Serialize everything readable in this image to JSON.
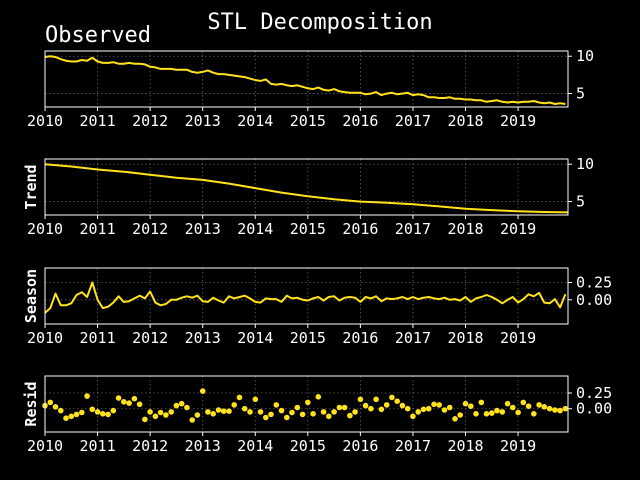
{
  "title": "STL Decomposition",
  "colors": {
    "background": "#000000",
    "line": "#ffe21c",
    "axis": "#ffffff",
    "grid": "#b0b0b0"
  },
  "chart_data": [
    {
      "type": "line",
      "label": "Observed",
      "label_position": "title",
      "xlim": [
        2010,
        2019.95
      ],
      "ylim": [
        3.2,
        10.7
      ],
      "xticks": [
        "2010",
        "2011",
        "2012",
        "2013",
        "2014",
        "2015",
        "2016",
        "2017",
        "2018",
        "2019"
      ],
      "yticks": [
        10,
        5
      ],
      "grid": true,
      "x": [
        2010.0,
        2010.1,
        2010.2,
        2010.3,
        2010.4,
        2010.5,
        2010.6,
        2010.7,
        2010.8,
        2010.9,
        2011.0,
        2011.1,
        2011.2,
        2011.3,
        2011.4,
        2011.5,
        2011.6,
        2011.7,
        2011.8,
        2011.9,
        2012.0,
        2012.1,
        2012.2,
        2012.3,
        2012.4,
        2012.5,
        2012.6,
        2012.7,
        2012.8,
        2012.9,
        2013.0,
        2013.1,
        2013.2,
        2013.3,
        2013.4,
        2013.5,
        2013.6,
        2013.7,
        2013.8,
        2013.9,
        2014.0,
        2014.1,
        2014.2,
        2014.3,
        2014.4,
        2014.5,
        2014.6,
        2014.7,
        2014.8,
        2014.9,
        2015.0,
        2015.1,
        2015.2,
        2015.3,
        2015.4,
        2015.5,
        2015.6,
        2015.7,
        2015.8,
        2015.9,
        2016.0,
        2016.1,
        2016.2,
        2016.3,
        2016.4,
        2016.5,
        2016.6,
        2016.7,
        2016.8,
        2016.9,
        2017.0,
        2017.1,
        2017.2,
        2017.3,
        2017.4,
        2017.5,
        2017.6,
        2017.7,
        2017.8,
        2017.9,
        2018.0,
        2018.1,
        2018.2,
        2018.3,
        2018.4,
        2018.5,
        2018.6,
        2018.7,
        2018.8,
        2018.9,
        2019.0,
        2019.1,
        2019.2,
        2019.3,
        2019.4,
        2019.5,
        2019.6,
        2019.7,
        2019.8,
        2019.9
      ],
      "y": [
        9.9,
        10.0,
        9.9,
        9.6,
        9.4,
        9.3,
        9.3,
        9.5,
        9.4,
        9.8,
        9.3,
        9.1,
        9.1,
        9.2,
        9.0,
        9.0,
        9.1,
        9.0,
        9.0,
        8.9,
        8.6,
        8.5,
        8.3,
        8.3,
        8.3,
        8.2,
        8.2,
        8.2,
        7.9,
        7.8,
        7.9,
        8.1,
        7.8,
        7.6,
        7.6,
        7.5,
        7.4,
        7.3,
        7.2,
        7.0,
        6.8,
        6.7,
        6.9,
        6.3,
        6.2,
        6.3,
        6.1,
        6.0,
        6.1,
        5.9,
        5.7,
        5.6,
        5.8,
        5.5,
        5.4,
        5.6,
        5.3,
        5.2,
        5.1,
        5.1,
        5.1,
        4.9,
        5.0,
        5.2,
        4.8,
        5.0,
        5.1,
        4.9,
        5.0,
        5.1,
        4.8,
        4.9,
        4.8,
        4.5,
        4.5,
        4.4,
        4.4,
        4.5,
        4.3,
        4.3,
        4.2,
        4.2,
        4.1,
        4.1,
        3.9,
        4.0,
        4.1,
        3.9,
        3.8,
        3.9,
        3.8,
        3.9,
        3.9,
        4.0,
        3.8,
        3.7,
        3.8,
        3.6,
        3.7,
        3.6
      ]
    },
    {
      "type": "line",
      "label": "Trend",
      "label_position": "ylabel",
      "xlim": [
        2010,
        2019.95
      ],
      "ylim": [
        3.2,
        10.7
      ],
      "xticks": [
        "2010",
        "2011",
        "2012",
        "2013",
        "2014",
        "2015",
        "2016",
        "2017",
        "2018",
        "2019"
      ],
      "yticks": [
        10,
        5
      ],
      "grid": true,
      "x": [
        2010,
        2010.5,
        2011,
        2011.5,
        2012,
        2012.5,
        2013,
        2013.5,
        2014,
        2014.5,
        2015,
        2015.5,
        2016,
        2016.5,
        2017,
        2017.5,
        2018,
        2018.5,
        2019,
        2019.5,
        2019.95
      ],
      "y": [
        10.0,
        9.7,
        9.3,
        9.0,
        8.6,
        8.2,
        7.9,
        7.4,
        6.8,
        6.2,
        5.7,
        5.3,
        5.0,
        4.85,
        4.65,
        4.35,
        4.05,
        3.85,
        3.7,
        3.6,
        3.55
      ]
    },
    {
      "type": "line",
      "label": "Season",
      "label_position": "ylabel",
      "xlim": [
        2010,
        2019.95
      ],
      "ylim": [
        -0.35,
        0.46
      ],
      "xticks": [
        "2010",
        "2011",
        "2012",
        "2013",
        "2014",
        "2015",
        "2016",
        "2017",
        "2018",
        "2019"
      ],
      "yticks": [
        0.25,
        0.0
      ],
      "ytick_labels": [
        "0.25",
        "0.00"
      ],
      "grid": true,
      "x": [
        2010.0,
        2010.1,
        2010.2,
        2010.3,
        2010.4,
        2010.5,
        2010.6,
        2010.7,
        2010.8,
        2010.9,
        2011.0,
        2011.1,
        2011.2,
        2011.3,
        2011.4,
        2011.5,
        2011.6,
        2011.7,
        2011.8,
        2011.9,
        2012.0,
        2012.1,
        2012.2,
        2012.3,
        2012.4,
        2012.5,
        2012.6,
        2012.7,
        2012.8,
        2012.9,
        2013.0,
        2013.1,
        2013.2,
        2013.3,
        2013.4,
        2013.5,
        2013.6,
        2013.7,
        2013.8,
        2013.9,
        2014.0,
        2014.1,
        2014.2,
        2014.3,
        2014.4,
        2014.5,
        2014.6,
        2014.7,
        2014.8,
        2014.9,
        2015.0,
        2015.1,
        2015.2,
        2015.3,
        2015.4,
        2015.5,
        2015.6,
        2015.7,
        2015.8,
        2015.9,
        2016.0,
        2016.1,
        2016.2,
        2016.3,
        2016.4,
        2016.5,
        2016.6,
        2016.7,
        2016.8,
        2016.9,
        2017.0,
        2017.1,
        2017.2,
        2017.3,
        2017.4,
        2017.5,
        2017.6,
        2017.7,
        2017.8,
        2017.9,
        2018.0,
        2018.1,
        2018.2,
        2018.3,
        2018.4,
        2018.5,
        2018.6,
        2018.7,
        2018.8,
        2018.9,
        2019.0,
        2019.1,
        2019.2,
        2019.3,
        2019.4,
        2019.5,
        2019.6,
        2019.7,
        2019.8,
        2019.9
      ],
      "y": [
        -0.19,
        -0.12,
        0.09,
        -0.08,
        -0.08,
        -0.05,
        0.07,
        0.11,
        0.04,
        0.25,
        0.0,
        -0.12,
        -0.1,
        -0.04,
        0.05,
        -0.03,
        -0.02,
        0.02,
        0.06,
        0.02,
        0.12,
        -0.04,
        -0.08,
        -0.06,
        0.0,
        0.0,
        0.03,
        0.05,
        0.03,
        0.06,
        -0.02,
        -0.03,
        0.03,
        -0.01,
        -0.04,
        0.05,
        0.02,
        0.04,
        0.06,
        0.02,
        -0.03,
        -0.04,
        0.02,
        0.01,
        0.01,
        -0.03,
        0.06,
        0.02,
        0.03,
        0.0,
        -0.01,
        0.02,
        0.04,
        -0.01,
        0.04,
        0.05,
        -0.01,
        0.03,
        0.04,
        0.03,
        -0.03,
        0.04,
        0.02,
        0.05,
        -0.02,
        0.02,
        0.01,
        0.02,
        0.04,
        0.01,
        0.04,
        0.01,
        0.03,
        0.04,
        0.02,
        0.01,
        0.03,
        0.0,
        0.01,
        -0.01,
        0.04,
        -0.03,
        0.02,
        0.04,
        0.07,
        0.04,
        0.0,
        -0.05,
        0.0,
        0.04,
        -0.04,
        0.01,
        0.08,
        0.05,
        0.1,
        -0.04,
        -0.05,
        0.01,
        -0.11,
        0.08
      ]
    },
    {
      "type": "scatter",
      "label": "Resid",
      "label_position": "ylabel",
      "xlim": [
        2010,
        2019.95
      ],
      "ylim": [
        -0.37,
        0.52
      ],
      "xticks": [
        "2010",
        "2011",
        "2012",
        "2013",
        "2014",
        "2015",
        "2016",
        "2017",
        "2018",
        "2019"
      ],
      "yticks": [
        0.25,
        0.0
      ],
      "ytick_labels": [
        "0.25",
        "0.00"
      ],
      "grid": true,
      "x": [
        2010.0,
        2010.1,
        2010.2,
        2010.3,
        2010.4,
        2010.5,
        2010.6,
        2010.7,
        2010.8,
        2010.9,
        2011.0,
        2011.1,
        2011.2,
        2011.3,
        2011.4,
        2011.5,
        2011.6,
        2011.7,
        2011.8,
        2011.9,
        2012.0,
        2012.1,
        2012.2,
        2012.3,
        2012.4,
        2012.5,
        2012.6,
        2012.7,
        2012.8,
        2012.9,
        2013.0,
        2013.1,
        2013.2,
        2013.3,
        2013.4,
        2013.5,
        2013.6,
        2013.7,
        2013.8,
        2013.9,
        2014.0,
        2014.1,
        2014.2,
        2014.3,
        2014.4,
        2014.5,
        2014.6,
        2014.7,
        2014.8,
        2014.9,
        2015.0,
        2015.1,
        2015.2,
        2015.3,
        2015.4,
        2015.5,
        2015.6,
        2015.7,
        2015.8,
        2015.9,
        2016.0,
        2016.1,
        2016.2,
        2016.3,
        2016.4,
        2016.5,
        2016.6,
        2016.7,
        2016.8,
        2016.9,
        2017.0,
        2017.1,
        2017.2,
        2017.3,
        2017.4,
        2017.5,
        2017.6,
        2017.7,
        2017.8,
        2017.9,
        2018.0,
        2018.1,
        2018.2,
        2018.3,
        2018.4,
        2018.5,
        2018.6,
        2018.7,
        2018.8,
        2018.9,
        2019.0,
        2019.1,
        2019.2,
        2019.3,
        2019.4,
        2019.5,
        2019.6,
        2019.7,
        2019.8,
        2019.9
      ],
      "y": [
        0.05,
        0.1,
        0.03,
        -0.03,
        -0.15,
        -0.12,
        -0.09,
        -0.06,
        0.2,
        -0.01,
        -0.05,
        -0.08,
        -0.09,
        -0.03,
        0.17,
        0.11,
        0.09,
        0.16,
        0.07,
        -0.17,
        -0.05,
        -0.12,
        -0.06,
        -0.1,
        -0.05,
        0.05,
        0.08,
        0.02,
        -0.18,
        -0.1,
        0.28,
        -0.05,
        -0.08,
        -0.02,
        -0.04,
        -0.04,
        0.06,
        0.18,
        0.0,
        -0.05,
        0.15,
        -0.05,
        -0.14,
        -0.09,
        0.06,
        -0.03,
        -0.14,
        -0.06,
        0.02,
        -0.09,
        0.1,
        -0.08,
        0.19,
        -0.05,
        -0.12,
        -0.05,
        0.02,
        0.02,
        -0.11,
        -0.05,
        0.15,
        0.05,
        0.0,
        0.15,
        -0.01,
        0.06,
        0.18,
        0.12,
        0.05,
        0.0,
        -0.12,
        -0.05,
        -0.01,
        0.0,
        0.07,
        0.06,
        -0.02,
        0.02,
        -0.16,
        -0.1,
        0.08,
        0.04,
        -0.08,
        0.1,
        -0.08,
        -0.07,
        -0.03,
        -0.05,
        0.08,
        0.02,
        -0.06,
        0.1,
        0.04,
        -0.08,
        0.06,
        0.03,
        0.0,
        -0.02,
        -0.03,
        0.0
      ]
    }
  ]
}
